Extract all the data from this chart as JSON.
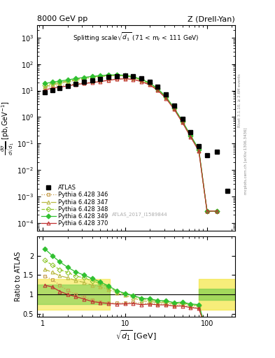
{
  "title_left": "8000 GeV pp",
  "title_right": "Z (Drell-Yan)",
  "annotation": "Splitting scale $\\sqrt{d_1}$ (71 < m$_l$ < 111 GeV)",
  "watermark": "ATLAS_2017_I1589844",
  "ylabel_main": "dσ/dsqrt(d_1) [pb,GeV^-1]",
  "ylabel_ratio": "Ratio to ATLAS",
  "xlabel": "sqrt{d_1} [GeV]",
  "x_atlas": [
    1.05,
    1.3,
    1.6,
    2.0,
    2.5,
    3.15,
    3.98,
    5.0,
    6.3,
    7.94,
    10.0,
    12.6,
    15.8,
    20.0,
    25.1,
    31.6,
    39.8,
    50.1,
    63.1,
    79.4,
    100.0,
    133.0,
    177.0
  ],
  "y_atlas": [
    8.5,
    10.5,
    12.5,
    15.0,
    18.0,
    21.0,
    24.5,
    28.0,
    32.0,
    36.0,
    37.0,
    34.5,
    30.0,
    22.0,
    14.0,
    7.0,
    2.8,
    0.88,
    0.27,
    0.082,
    0.036,
    0.05,
    0.0016
  ],
  "x_mc": [
    1.05,
    1.3,
    1.6,
    2.0,
    2.5,
    3.15,
    3.98,
    5.0,
    6.3,
    7.94,
    10.0,
    12.6,
    15.8,
    20.0,
    25.1,
    31.6,
    39.8,
    50.1,
    63.1,
    79.4,
    100.0,
    133.0
  ],
  "y_py346": [
    12.5,
    14.5,
    15.5,
    16.5,
    18.0,
    19.5,
    21.0,
    22.5,
    25.0,
    28.0,
    29.0,
    27.5,
    23.0,
    17.0,
    10.5,
    5.2,
    2.0,
    0.636,
    0.183,
    0.0535,
    0.00028,
    0.00028
  ],
  "y_py347": [
    14.0,
    16.5,
    18.5,
    21.5,
    24.5,
    27.5,
    30.5,
    33.5,
    36.0,
    37.0,
    36.0,
    31.5,
    25.0,
    18.0,
    11.0,
    5.5,
    2.1,
    0.665,
    0.193,
    0.0564,
    0.00028,
    0.00028
  ],
  "y_py348": [
    16.0,
    18.5,
    20.5,
    23.5,
    26.5,
    30.0,
    33.0,
    36.0,
    38.0,
    38.5,
    37.5,
    33.0,
    26.5,
    19.0,
    11.5,
    5.7,
    2.15,
    0.685,
    0.198,
    0.0586,
    0.00028,
    0.00028
  ],
  "y_py349": [
    18.5,
    21.0,
    23.0,
    25.5,
    28.5,
    31.5,
    34.5,
    37.0,
    39.0,
    39.5,
    38.0,
    33.5,
    27.0,
    19.5,
    11.8,
    5.85,
    2.2,
    0.703,
    0.203,
    0.0604,
    0.00028,
    0.00028
  ],
  "y_py370": [
    10.5,
    12.5,
    13.5,
    15.0,
    17.0,
    18.5,
    20.0,
    22.0,
    24.5,
    27.0,
    28.0,
    26.5,
    22.0,
    16.5,
    10.2,
    5.1,
    1.95,
    0.616,
    0.178,
    0.0521,
    0.00028,
    0.00028
  ],
  "color_346": "#c8a050",
  "color_347": "#b8b840",
  "color_348": "#90c830",
  "color_349": "#30c030",
  "color_370": "#c03030",
  "ratio_346": [
    1.47,
    1.38,
    1.24,
    1.1,
    1.0,
    0.929,
    0.857,
    0.804,
    0.781,
    0.778,
    0.784,
    0.797,
    0.767,
    0.773,
    0.75,
    0.743,
    0.714,
    0.722,
    0.679,
    0.652,
    0.0078,
    0.0056
  ],
  "ratio_347": [
    1.65,
    1.57,
    1.48,
    1.43,
    1.36,
    1.31,
    1.24,
    1.196,
    1.125,
    1.028,
    0.973,
    0.913,
    0.833,
    0.818,
    0.786,
    0.786,
    0.75,
    0.756,
    0.715,
    0.687,
    0.0078,
    0.0056
  ],
  "ratio_348": [
    1.88,
    1.76,
    1.64,
    1.567,
    1.472,
    1.429,
    1.347,
    1.286,
    1.188,
    1.069,
    1.014,
    0.957,
    0.883,
    0.864,
    0.821,
    0.814,
    0.768,
    0.778,
    0.733,
    0.715,
    0.0078,
    0.0056
  ],
  "ratio_349": [
    2.18,
    2.0,
    1.84,
    1.7,
    1.583,
    1.5,
    1.408,
    1.321,
    1.219,
    1.097,
    1.027,
    0.971,
    0.9,
    0.886,
    0.843,
    0.836,
    0.786,
    0.799,
    0.752,
    0.737,
    0.0078,
    0.0056
  ],
  "ratio_370": [
    1.24,
    1.19,
    1.08,
    1.0,
    0.944,
    0.881,
    0.816,
    0.786,
    0.766,
    0.75,
    0.757,
    0.768,
    0.733,
    0.75,
    0.729,
    0.729,
    0.696,
    0.7,
    0.659,
    0.635,
    0.0078,
    0.0056
  ],
  "band_lo_yellow_ylo": 0.6,
  "band_lo_yellow_yhi": 1.4,
  "band_lo_green_ylo": 0.75,
  "band_lo_green_yhi": 1.25,
  "band_lo_xlo": 0.85,
  "band_lo_xhi": 6.5,
  "band_hi_yellow_ylo": 0.6,
  "band_hi_yellow_yhi": 1.4,
  "band_hi_green_ylo": 0.85,
  "band_hi_green_yhi": 1.15,
  "band_hi_xlo": 79.4,
  "band_hi_xhi": 220.0
}
